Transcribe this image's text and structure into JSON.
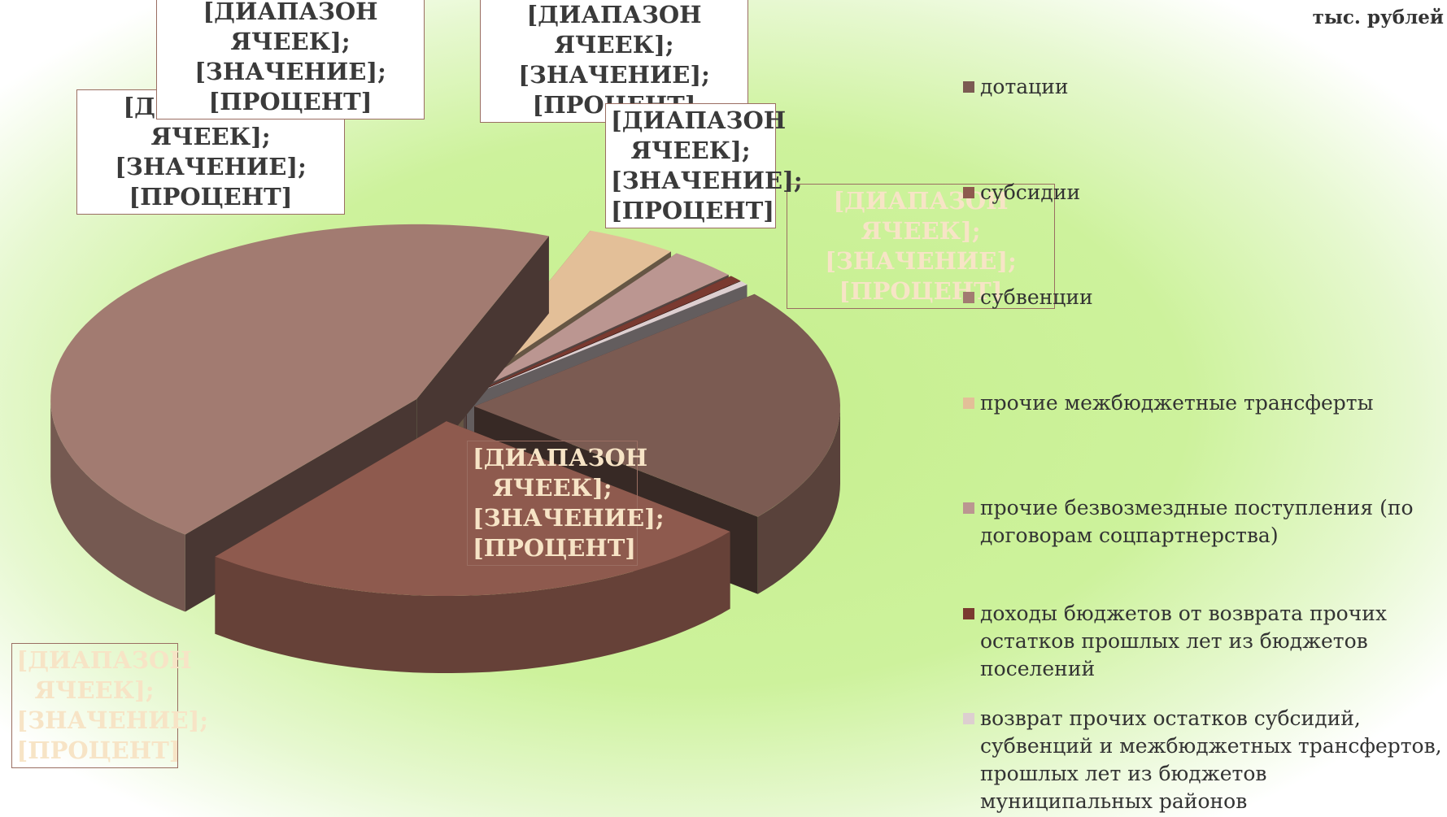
{
  "chart_data": {
    "type": "pie3d",
    "subtitle": "тыс. рублей",
    "categories": [
      "дотации",
      "субсидии",
      "субвенции",
      "прочие межбюджетные трансферты",
      "прочие безвозмездные поступления (по договорам соцпартнерства)",
      "доходы бюджетов от возврата прочих остатков прошлых лет из бюджетов поселений",
      "возврат прочих остатков субсидий, субвенций и межбюджетных трансфертов, прошлых лет из бюджетов муниципальных районов"
    ],
    "values": [
      22,
      25,
      45,
      4,
      3,
      0.6,
      0.4
    ],
    "colors": [
      "#7b5b52",
      "#8e5a4e",
      "#a27b71",
      "#e3bf98",
      "#bb9691",
      "#7a3a30",
      "#ddcfd0"
    ],
    "data_labels": [
      "[ДИАПАЗОН ЯЧЕЕК]; [ЗНАЧЕНИЕ]; [ПРОЦЕНТ]",
      "[ДИАПАЗОН ЯЧЕЕК]; [ЗНАЧЕНИЕ]; [ПРОЦЕНТ]",
      "[ДИАПАЗОН ЯЧЕЕК]; [ЗНАЧЕНИЕ]; [ПРОЦЕНТ]",
      "[ДИАПАЗОН ЯЧЕЕК]; [ЗНАЧЕНИЕ]; [ПРОЦЕНТ]",
      "[ДИАПАЗОН ЯЧЕЕК]; [ЗНАЧЕНИЕ]; [ПРОЦЕНТ]",
      "[ДИАПАЗОН ЯЧЕЕК]; [ЗНАЧЕНИЕ]; [ПРОЦЕНТ]",
      "[ДИАПАЗОН ЯЧЕЕК]; [ЗНАЧЕНИЕ]; [ПРОЦЕНТ]"
    ]
  }
}
